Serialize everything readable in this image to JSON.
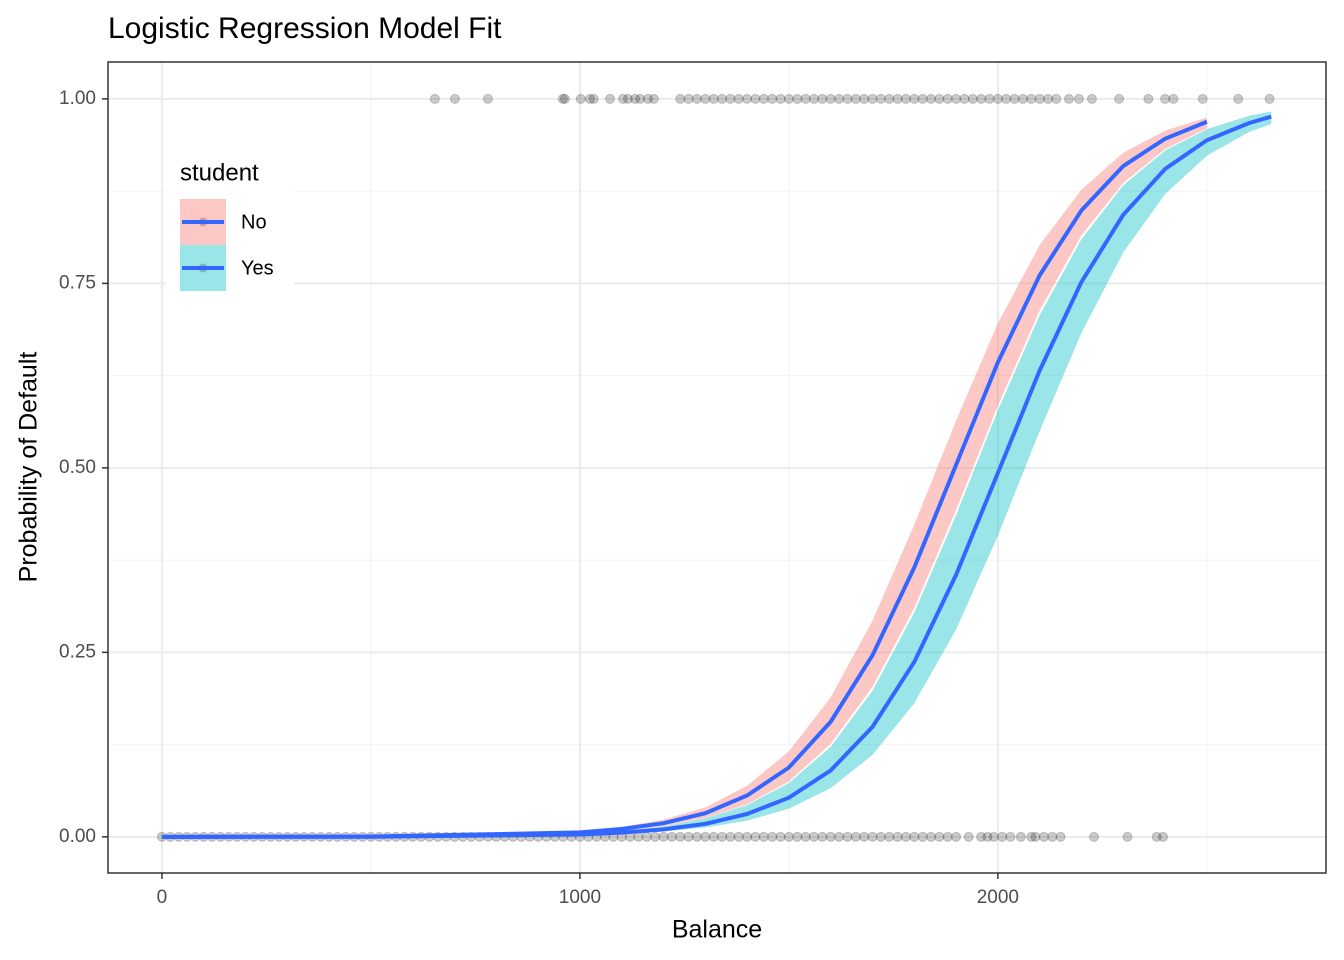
{
  "chart_data": {
    "type": "logistic-fit",
    "title": "Logistic Regression Model Fit",
    "x_label": "Balance",
    "y_label": "Probability of Default",
    "legend_title": "student",
    "legend_position": "top-left",
    "xlim": [
      -129,
      2785
    ],
    "ylim": [
      -0.049,
      1.05
    ],
    "xticks": [
      0,
      1000,
      2000
    ],
    "yticks": [
      {
        "value": 0,
        "label": "0.00"
      },
      {
        "value": 0.25,
        "label": "0.25"
      },
      {
        "value": 0.5,
        "label": "0.50"
      },
      {
        "value": 0.75,
        "label": "0.75"
      },
      {
        "value": 1,
        "label": "1.00"
      }
    ],
    "x_minor_grid": [
      500,
      1500,
      2500
    ],
    "y_minor_grid": [
      0.125,
      0.375,
      0.625,
      0.875
    ],
    "grid": true,
    "series": [
      {
        "name": "No",
        "color": "#3366FF",
        "fill": "#F8766D",
        "x": [
          0,
          500,
          1000,
          1100,
          1200,
          1300,
          1400,
          1500,
          1600,
          1700,
          1800,
          1900,
          2000,
          2100,
          2200,
          2300,
          2400,
          2500
        ],
        "values": [
          0.0,
          0.0003,
          0.006,
          0.0106,
          0.0185,
          0.032,
          0.056,
          0.094,
          0.156,
          0.246,
          0.365,
          0.504,
          0.643,
          0.761,
          0.849,
          0.909,
          0.946,
          0.969
        ],
        "lower": [
          0.0,
          0.0003,
          0.0047,
          0.0083,
          0.0145,
          0.0254,
          0.044,
          0.075,
          0.126,
          0.203,
          0.31,
          0.443,
          0.584,
          0.713,
          0.815,
          0.886,
          0.932,
          0.96
        ],
        "upper": [
          0.0,
          0.0004,
          0.0076,
          0.0134,
          0.0234,
          0.04,
          0.069,
          0.116,
          0.189,
          0.293,
          0.423,
          0.564,
          0.696,
          0.802,
          0.877,
          0.927,
          0.957,
          0.975
        ]
      },
      {
        "name": "Yes",
        "color": "#3366FF",
        "fill": "#00BFC4",
        "x": [
          0,
          500,
          1000,
          1100,
          1200,
          1300,
          1400,
          1500,
          1600,
          1700,
          1800,
          1900,
          2000,
          2100,
          2200,
          2300,
          2400,
          2500,
          2600,
          2654
        ],
        "values": [
          0.0,
          0.0002,
          0.0032,
          0.0057,
          0.0101,
          0.0176,
          0.031,
          0.053,
          0.09,
          0.149,
          0.237,
          0.355,
          0.493,
          0.632,
          0.752,
          0.843,
          0.905,
          0.944,
          0.967,
          0.976
        ],
        "lower": [
          0.0,
          0.0001,
          0.0023,
          0.0041,
          0.0072,
          0.0126,
          0.022,
          0.038,
          0.066,
          0.111,
          0.181,
          0.281,
          0.408,
          0.55,
          0.683,
          0.792,
          0.871,
          0.923,
          0.955,
          0.966
        ],
        "upper": [
          0.0,
          0.0003,
          0.0046,
          0.008,
          0.0141,
          0.025,
          0.043,
          0.073,
          0.122,
          0.198,
          0.304,
          0.436,
          0.578,
          0.707,
          0.81,
          0.883,
          0.93,
          0.959,
          0.977,
          0.983
        ]
      }
    ],
    "points": {
      "color": "#000000",
      "opacity": 0.2,
      "groups": [
        {
          "y": 1,
          "x": [
            653,
            701,
            780,
            959,
            964,
            1002,
            1024,
            1033,
            1072,
            1103,
            1115,
            1132,
            1144,
            1163,
            1177,
            1240,
            1260,
            1280,
            1300,
            1320,
            1340,
            1360,
            1380,
            1400,
            1420,
            1440,
            1460,
            1480,
            1500,
            1520,
            1540,
            1560,
            1580,
            1600,
            1620,
            1640,
            1660,
            1680,
            1700,
            1720,
            1740,
            1760,
            1780,
            1800,
            1820,
            1840,
            1860,
            1880,
            1900,
            1920,
            1940,
            1960,
            1980,
            2000,
            2020,
            2040,
            2060,
            2080,
            2100,
            2120,
            2140,
            2170,
            2194,
            2225,
            2290,
            2360,
            2400,
            2420,
            2490,
            2575,
            2650
          ]
        },
        {
          "y": 0,
          "x": [
            0,
            20,
            40,
            60,
            80,
            100,
            120,
            140,
            160,
            180,
            200,
            220,
            240,
            260,
            280,
            300,
            320,
            340,
            360,
            380,
            400,
            420,
            440,
            460,
            480,
            500,
            520,
            540,
            560,
            580,
            600,
            620,
            640,
            660,
            680,
            700,
            720,
            740,
            760,
            780,
            800,
            820,
            840,
            860,
            880,
            900,
            920,
            940,
            960,
            980,
            1000,
            1020,
            1040,
            1060,
            1080,
            1100,
            1120,
            1140,
            1160,
            1180,
            1200,
            1220,
            1240,
            1260,
            1280,
            1300,
            1320,
            1340,
            1360,
            1380,
            1400,
            1420,
            1440,
            1460,
            1480,
            1500,
            1520,
            1540,
            1560,
            1580,
            1600,
            1620,
            1640,
            1660,
            1680,
            1700,
            1720,
            1740,
            1760,
            1780,
            1800,
            1820,
            1840,
            1860,
            1880,
            1900,
            1930,
            1960,
            1975,
            1990,
            2010,
            2030,
            2055,
            2080,
            2090,
            2110,
            2130,
            2150,
            2230,
            2310,
            2380,
            2395
          ]
        }
      ]
    }
  }
}
